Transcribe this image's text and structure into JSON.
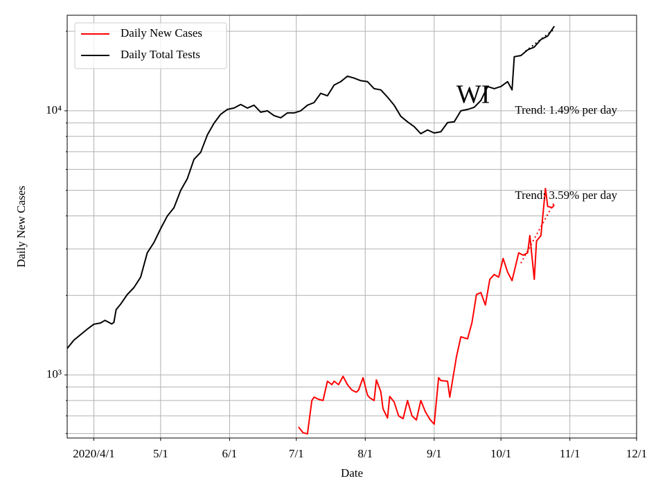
{
  "chart_data": {
    "type": "line",
    "title": "WI",
    "x_label": "Date",
    "y_label": "Daily New Cases",
    "log_scale": true,
    "grid": true,
    "legend": "upper-left",
    "xlim": [
      "2020-03-20",
      "2020-12-01"
    ],
    "xticks": [
      {
        "value": "2020-04-01",
        "label": "2020/4/1"
      },
      {
        "value": "2020-05-01",
        "label": "5/1"
      },
      {
        "value": "2020-06-01",
        "label": "6/1"
      },
      {
        "value": "2020-07-01",
        "label": "7/1"
      },
      {
        "value": "2020-08-01",
        "label": "8/1"
      },
      {
        "value": "2020-09-01",
        "label": "9/1"
      },
      {
        "value": "2020-10-01",
        "label": "10/1"
      },
      {
        "value": "2020-11-01",
        "label": "11/1"
      },
      {
        "value": "2020-12-01",
        "label": "12/1"
      }
    ],
    "ylim": [
      577,
      23000
    ],
    "yticks": [
      {
        "value": 1000,
        "label": "10³"
      },
      {
        "value": 10000,
        "label": "10⁴"
      }
    ],
    "yminorticks": [
      600,
      700,
      800,
      900,
      2000,
      3000,
      4000,
      5000,
      6000,
      7000,
      8000,
      9000,
      20000
    ],
    "series": [
      {
        "name": "Daily New Cases",
        "color": "#ff0000",
        "x": [
          "2020-07-02",
          "2020-07-04",
          "2020-07-06",
          "2020-07-08",
          "2020-07-09",
          "2020-07-11",
          "2020-07-13",
          "2020-07-15",
          "2020-07-17",
          "2020-07-18",
          "2020-07-20",
          "2020-07-22",
          "2020-07-24",
          "2020-07-26",
          "2020-07-28",
          "2020-07-29",
          "2020-07-31",
          "2020-08-02",
          "2020-08-03",
          "2020-08-05",
          "2020-08-06",
          "2020-08-08",
          "2020-08-09",
          "2020-08-11",
          "2020-08-12",
          "2020-08-14",
          "2020-08-16",
          "2020-08-18",
          "2020-08-20",
          "2020-08-22",
          "2020-08-24",
          "2020-08-26",
          "2020-08-28",
          "2020-08-30",
          "2020-09-01",
          "2020-09-03",
          "2020-09-04",
          "2020-09-07",
          "2020-09-08",
          "2020-09-11",
          "2020-09-13",
          "2020-09-16",
          "2020-09-18",
          "2020-09-20",
          "2020-09-22",
          "2020-09-24",
          "2020-09-26",
          "2020-09-28",
          "2020-09-30",
          "2020-10-02",
          "2020-10-04",
          "2020-10-06",
          "2020-10-09",
          "2020-10-11",
          "2020-10-13",
          "2020-10-14",
          "2020-10-16",
          "2020-10-17",
          "2020-10-19",
          "2020-10-21",
          "2020-10-22",
          "2020-10-24",
          "2020-10-25"
        ],
        "values": [
          635,
          605,
          598,
          800,
          824,
          809,
          800,
          947,
          919,
          947,
          919,
          988,
          919,
          876,
          860,
          876,
          976,
          839,
          819,
          800,
          958,
          865,
          743,
          687,
          829,
          790,
          700,
          683,
          800,
          700,
          675,
          800,
          726,
          680,
          651,
          976,
          952,
          947,
          824,
          1170,
          1394,
          1370,
          1582,
          2015,
          2050,
          1840,
          2300,
          2400,
          2345,
          2760,
          2450,
          2275,
          2900,
          2840,
          2900,
          3370,
          2300,
          3213,
          3370,
          5080,
          4345,
          4300,
          4400
        ]
      },
      {
        "name": "Daily Total Tests",
        "color": "#000000",
        "x": [
          "2020-03-20",
          "2020-03-23",
          "2020-03-26",
          "2020-03-29",
          "2020-04-01",
          "2020-04-04",
          "2020-04-06",
          "2020-04-09",
          "2020-04-10",
          "2020-04-11",
          "2020-04-13",
          "2020-04-16",
          "2020-04-19",
          "2020-04-22",
          "2020-04-25",
          "2020-04-28",
          "2020-05-01",
          "2020-05-04",
          "2020-05-07",
          "2020-05-10",
          "2020-05-13",
          "2020-05-16",
          "2020-05-19",
          "2020-05-22",
          "2020-05-25",
          "2020-05-28",
          "2020-05-31",
          "2020-06-03",
          "2020-06-06",
          "2020-06-09",
          "2020-06-12",
          "2020-06-15",
          "2020-06-18",
          "2020-06-21",
          "2020-06-24",
          "2020-06-27",
          "2020-06-30",
          "2020-07-03",
          "2020-07-06",
          "2020-07-09",
          "2020-07-12",
          "2020-07-15",
          "2020-07-18",
          "2020-07-21",
          "2020-07-24",
          "2020-07-27",
          "2020-07-30",
          "2020-08-02",
          "2020-08-05",
          "2020-08-08",
          "2020-08-11",
          "2020-08-14",
          "2020-08-17",
          "2020-08-20",
          "2020-08-23",
          "2020-08-26",
          "2020-08-29",
          "2020-09-01",
          "2020-09-04",
          "2020-09-07",
          "2020-09-10",
          "2020-09-13",
          "2020-09-16",
          "2020-09-19",
          "2020-09-22",
          "2020-09-25",
          "2020-09-28",
          "2020-10-01",
          "2020-10-04",
          "2020-10-06",
          "2020-10-07",
          "2020-10-10",
          "2020-10-13",
          "2020-10-16",
          "2020-10-19",
          "2020-10-22",
          "2020-10-25"
        ],
        "values": [
          1260,
          1353,
          1420,
          1490,
          1556,
          1573,
          1610,
          1560,
          1580,
          1765,
          1853,
          2015,
          2141,
          2345,
          2900,
          3172,
          3580,
          3993,
          4293,
          4993,
          5530,
          6550,
          6960,
          8095,
          8970,
          9700,
          10120,
          10240,
          10560,
          10240,
          10500,
          9880,
          10000,
          9590,
          9410,
          9820,
          9820,
          10000,
          10500,
          10740,
          11640,
          11400,
          12510,
          12890,
          13520,
          13300,
          13000,
          12890,
          12130,
          12000,
          11270,
          10500,
          9530,
          9080,
          8710,
          8190,
          8460,
          8240,
          8330,
          9020,
          9080,
          10000,
          10120,
          10310,
          10940,
          12360,
          12130,
          12360,
          12890,
          12000,
          16030,
          16190,
          17000,
          17430,
          18620,
          19180,
          20900
        ]
      }
    ],
    "trends": [
      {
        "label": "Trend: 3.59% per day",
        "color": "#ff0000",
        "x": [
          "2020-10-10",
          "2020-10-25"
        ],
        "values": [
          2650,
          4500
        ]
      },
      {
        "label": "Trend: 1.49% per day",
        "color": "#000000",
        "x": [
          "2020-10-12",
          "2020-10-25"
        ],
        "values": [
          16800,
          20400
        ]
      }
    ]
  }
}
